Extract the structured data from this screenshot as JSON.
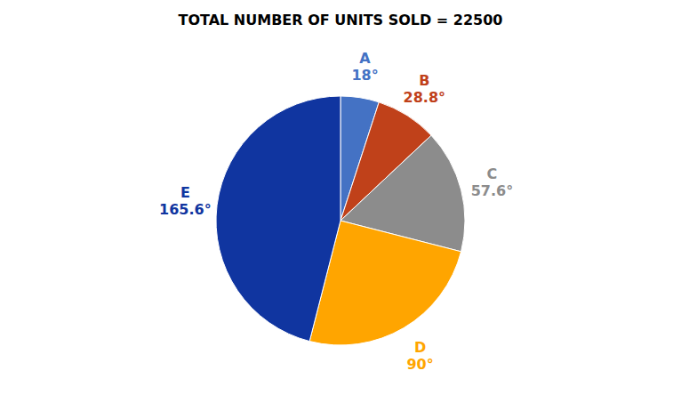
{
  "chart_data": {
    "type": "pie",
    "title": "TOTAL NUMBER OF UNITS SOLD = 22500",
    "categories": [
      "A",
      "B",
      "C",
      "D",
      "E"
    ],
    "values": [
      18.0,
      28.8,
      57.6,
      90.0,
      165.6
    ],
    "value_labels": [
      "18°",
      "28.8°",
      "57.6°",
      "90°",
      "165.6°"
    ],
    "colors": [
      "#4472C4",
      "#C0411A",
      "#8C8C8C",
      "#FFA500",
      "#1035A0"
    ],
    "data_labels": true
  }
}
